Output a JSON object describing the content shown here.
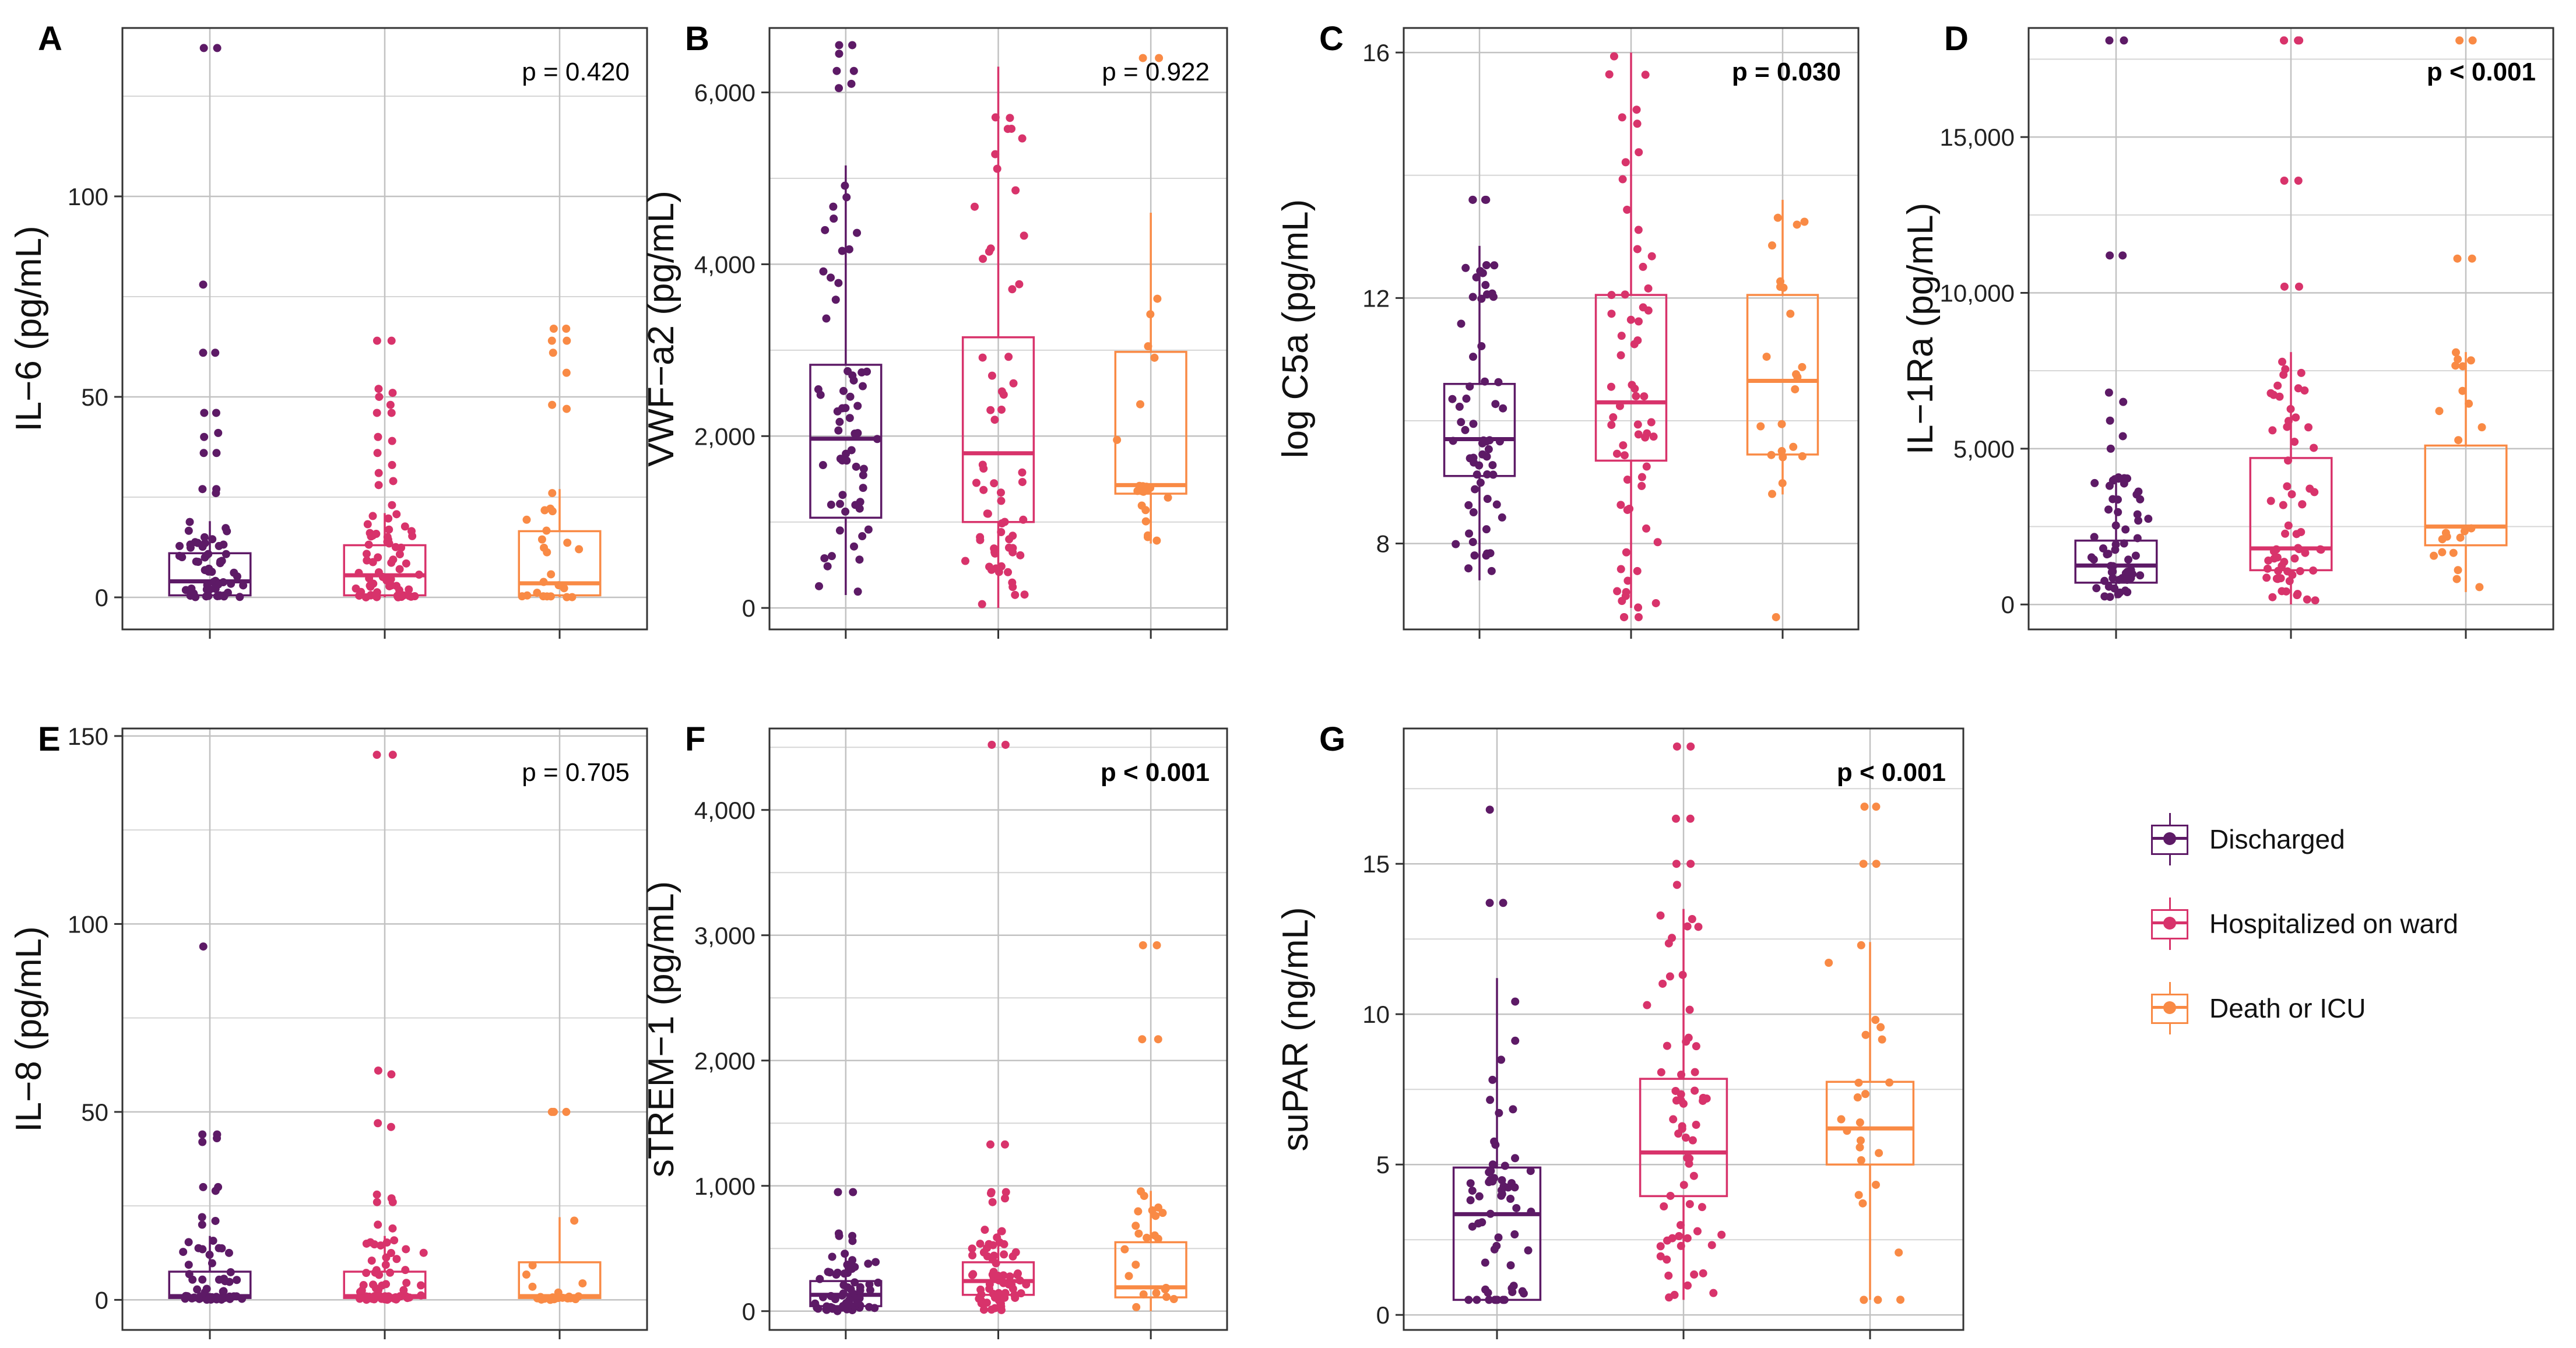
{
  "legend": {
    "items": [
      {
        "label": "Discharged",
        "color": "#5d1a66"
      },
      {
        "label": "Hospitalized on ward",
        "color": "#d8336b"
      },
      {
        "label": "Death or ICU",
        "color": "#f98a45"
      }
    ]
  },
  "chart_data": [
    {
      "type": "box",
      "panel": "A",
      "ylabel": "IL−6 (pg/mL)",
      "ylim": [
        -8,
        142
      ],
      "yticks": [
        0,
        50,
        100
      ],
      "ytick_labels": [
        "0",
        "50",
        "100"
      ],
      "p_value": "p = 0.420",
      "p_bold": false,
      "boxes": [
        {
          "group": "Discharged",
          "q1": 0.5,
          "median": 4,
          "q3": 11,
          "whisker_low": 0,
          "whisker_high": 19
        },
        {
          "group": "Hospitalized on ward",
          "q1": 0.5,
          "median": 5.5,
          "q3": 13,
          "whisker_low": 0,
          "whisker_high": 21
        },
        {
          "group": "Death or ICU",
          "q1": 0.5,
          "median": 3.5,
          "q3": 16.5,
          "whisker_low": 0,
          "whisker_high": 27
        }
      ],
      "outliers": [
        [
          137,
          137,
          78,
          61,
          61,
          46,
          46,
          41,
          40,
          36,
          36,
          27,
          27,
          26
        ],
        [
          64,
          64,
          52,
          51,
          50,
          48,
          46,
          46,
          40,
          39,
          36,
          33,
          31,
          29,
          28,
          23
        ],
        [
          67,
          67,
          64,
          64,
          61,
          56,
          48,
          47,
          26
        ]
      ]
    },
    {
      "type": "box",
      "panel": "B",
      "ylabel": "VWF−a2 (pg/mL)",
      "ylim": [
        -250,
        6750
      ],
      "yticks": [
        0,
        2000,
        4000,
        6000
      ],
      "ytick_labels": [
        "0",
        "2,000",
        "4,000",
        "6,000"
      ],
      "p_value": "p = 0.922",
      "p_bold": false,
      "boxes": [
        {
          "group": "Discharged",
          "q1": 1050,
          "median": 1970,
          "q3": 2830,
          "whisker_low": 150,
          "whisker_high": 5150
        },
        {
          "group": "Hospitalized on ward",
          "q1": 1000,
          "median": 1800,
          "q3": 3150,
          "whisker_low": 0,
          "whisker_high": 6300
        },
        {
          "group": "Death or ICU",
          "q1": 1330,
          "median": 1430,
          "q3": 2980,
          "whisker_low": 750,
          "whisker_high": 4600
        }
      ],
      "outliers": [
        [
          6550,
          6550,
          6450,
          6250,
          6250,
          6100,
          6050
        ],
        [],
        [
          6400,
          6400
        ]
      ]
    },
    {
      "type": "box",
      "panel": "C",
      "ylabel": "log C5a (pg/mL)",
      "ylim": [
        6.6,
        16.4
      ],
      "yticks": [
        8,
        12,
        16
      ],
      "ytick_labels": [
        "8",
        "12",
        "16"
      ],
      "p_value": "p = 0.030",
      "p_bold": true,
      "boxes": [
        {
          "group": "Discharged",
          "q1": 9.1,
          "median": 9.7,
          "q3": 10.6,
          "whisker_low": 7.4,
          "whisker_high": 12.85
        },
        {
          "group": "Hospitalized on ward",
          "q1": 9.35,
          "median": 10.3,
          "q3": 12.05,
          "whisker_low": 6.95,
          "whisker_high": 16
        },
        {
          "group": "Death or ICU",
          "q1": 9.45,
          "median": 10.65,
          "q3": 12.05,
          "whisker_low": 8.8,
          "whisker_high": 13.6
        }
      ],
      "outliers": [
        [
          13.6,
          13.6,
          13.6,
          13.6
        ],
        [
          6.8,
          6.8,
          6.8
        ],
        [
          6.8
        ]
      ]
    },
    {
      "type": "box",
      "panel": "D",
      "ylabel": "IL−1Ra (pg/mL)",
      "ylim": [
        -800,
        18500
      ],
      "yticks": [
        0,
        5000,
        10000,
        15000
      ],
      "ytick_labels": [
        "0",
        "5,000",
        "10,000",
        "15,000"
      ],
      "p_value": "p < 0.001",
      "p_bold": true,
      "boxes": [
        {
          "group": "Discharged",
          "q1": 700,
          "median": 1250,
          "q3": 2050,
          "whisker_low": 200,
          "whisker_high": 4100
        },
        {
          "group": "Hospitalized on ward",
          "q1": 1100,
          "median": 1800,
          "q3": 4700,
          "whisker_low": 0,
          "whisker_high": 8100
        },
        {
          "group": "Death or ICU",
          "q1": 1900,
          "median": 2500,
          "q3": 5100,
          "whisker_low": 400,
          "whisker_high": 8100
        }
      ],
      "outliers": [
        [
          18100,
          18100,
          11200,
          11200,
          6800,
          6500,
          5900,
          5400,
          5000
        ],
        [
          18100,
          18100,
          18100,
          18100,
          13600,
          13600,
          10200,
          10200
        ],
        [
          18100,
          18100,
          11100,
          11100
        ]
      ]
    },
    {
      "type": "box",
      "panel": "E",
      "ylabel": "IL−8 (pg/mL)",
      "ylim": [
        -8,
        152
      ],
      "yticks": [
        0,
        50,
        100,
        150
      ],
      "ytick_labels": [
        "0",
        "50",
        "100",
        "150"
      ],
      "p_value": "p = 0.705",
      "p_bold": false,
      "boxes": [
        {
          "group": "Discharged",
          "q1": 0.5,
          "median": 1,
          "q3": 7.5,
          "whisker_low": 0,
          "whisker_high": 17
        },
        {
          "group": "Hospitalized on ward",
          "q1": 0.5,
          "median": 1,
          "q3": 7.5,
          "whisker_low": 0,
          "whisker_high": 17
        },
        {
          "group": "Death or ICU",
          "q1": 0.5,
          "median": 1,
          "q3": 10,
          "whisker_low": 0,
          "whisker_high": 22
        }
      ],
      "outliers": [
        [
          94,
          44,
          44,
          43,
          42,
          30,
          30,
          29,
          22,
          21,
          20
        ],
        [
          145,
          145,
          61,
          60,
          47,
          46,
          28,
          27,
          26,
          26,
          20,
          19
        ],
        [
          50,
          50,
          50
        ]
      ]
    },
    {
      "type": "box",
      "panel": "F",
      "ylabel": "sTREM−1 (pg/mL)",
      "ylim": [
        -150,
        4650
      ],
      "yticks": [
        0,
        1000,
        2000,
        3000,
        4000
      ],
      "ytick_labels": [
        "0",
        "1,000",
        "2,000",
        "3,000",
        "4,000"
      ],
      "p_value": "p < 0.001",
      "p_bold": true,
      "boxes": [
        {
          "group": "Discharged",
          "q1": 40,
          "median": 130,
          "q3": 240,
          "whisker_low": 0,
          "whisker_high": 470
        },
        {
          "group": "Hospitalized on ward",
          "q1": 130,
          "median": 240,
          "q3": 390,
          "whisker_low": 0,
          "whisker_high": 650
        },
        {
          "group": "Death or ICU",
          "q1": 110,
          "median": 190,
          "q3": 550,
          "whisker_low": 0,
          "whisker_high": 960
        }
      ],
      "outliers": [
        [
          950,
          950,
          620,
          600,
          600,
          560
        ],
        [
          4520,
          4520,
          1330,
          1330,
          950,
          950,
          940,
          900,
          870
        ],
        [
          2920,
          2920,
          2170,
          2170
        ]
      ]
    },
    {
      "type": "box",
      "panel": "G",
      "ylabel": "suPAR (ng/mL)",
      "ylim": [
        -0.5,
        19.5
      ],
      "yticks": [
        0,
        5,
        10,
        15
      ],
      "ytick_labels": [
        "0",
        "5",
        "10",
        "15"
      ],
      "p_value": "p < 0.001",
      "p_bold": true,
      "boxes": [
        {
          "group": "Discharged",
          "q1": 0.5,
          "median": 3.35,
          "q3": 4.9,
          "whisker_low": 0.5,
          "whisker_high": 11.2
        },
        {
          "group": "Hospitalized on ward",
          "q1": 3.95,
          "median": 5.4,
          "q3": 7.85,
          "whisker_low": 0.5,
          "whisker_high": 13.5
        },
        {
          "group": "Death or ICU",
          "q1": 5,
          "median": 6.2,
          "q3": 7.75,
          "whisker_low": 0.5,
          "whisker_high": 12.4
        }
      ],
      "outliers": [
        [
          16.8,
          13.7,
          13.7
        ],
        [
          18.9,
          18.9,
          16.5,
          16.5,
          15,
          15,
          14.3
        ],
        [
          16.9,
          16.9,
          15,
          15,
          0.5,
          0.5
        ]
      ]
    }
  ]
}
